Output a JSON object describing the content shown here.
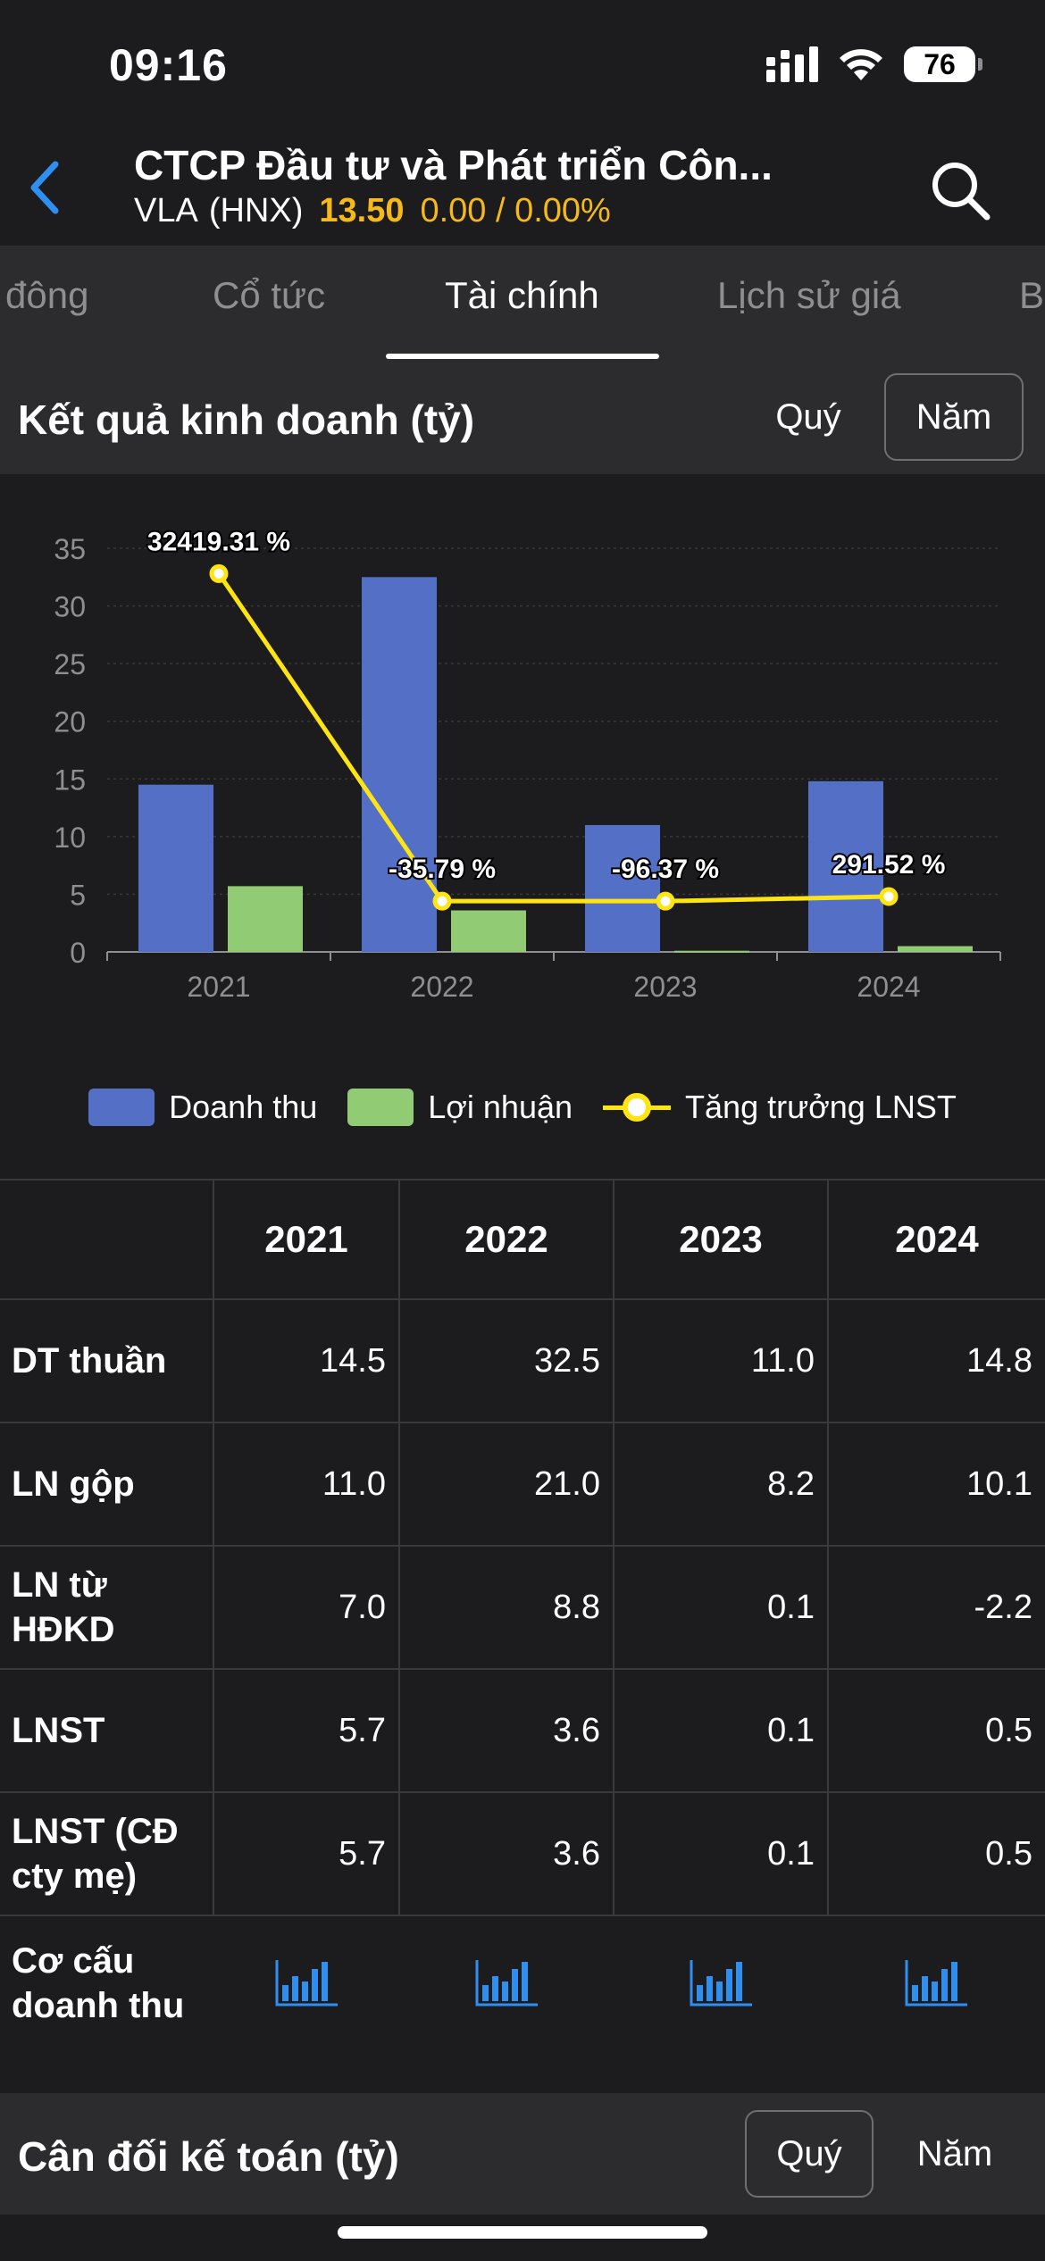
{
  "status": {
    "time": "09:16",
    "battery": "76"
  },
  "header": {
    "title": "CTCP Đầu tư và Phát triển Côn...",
    "symbol": "VLA",
    "exchange": "(HNX)",
    "price": "13.50",
    "change": "0.00 / 0.00%"
  },
  "tabs": [
    "đông",
    "Cổ tức",
    "Tài chính",
    "Lịch sử giá",
    "B"
  ],
  "active_tab": "Tài chính",
  "income_section": {
    "title": "Kết quả kinh doanh (tỷ)",
    "quarter": "Quý",
    "year": "Năm",
    "selected": "Năm"
  },
  "chart_data": {
    "type": "bar",
    "categories": [
      "2021",
      "2022",
      "2023",
      "2024"
    ],
    "series": [
      {
        "name": "Doanh thu",
        "kind": "bar",
        "values": [
          14.5,
          32.5,
          11.0,
          14.8
        ],
        "color": "#5470c6"
      },
      {
        "name": "Lợi nhuận",
        "kind": "bar",
        "values": [
          5.7,
          3.6,
          0.1,
          0.5
        ],
        "color": "#91cc75"
      },
      {
        "name": "Tăng trưởng LNST",
        "kind": "line",
        "values": [
          32.8,
          4.4,
          4.4,
          4.8
        ],
        "labels": [
          "32419.31 %",
          "-35.79 %",
          "-96.37 %",
          "291.52 %"
        ],
        "color": "#ffe413"
      }
    ],
    "yticks": [
      0,
      5,
      10,
      15,
      20,
      25,
      30,
      35
    ],
    "ylim": [
      0,
      35
    ],
    "grid": true,
    "legend_position": "bottom"
  },
  "table": {
    "years": [
      "2021",
      "2022",
      "2023",
      "2024"
    ],
    "rows": [
      {
        "label": "DT thuần",
        "values": [
          "14.5",
          "32.5",
          "11.0",
          "14.8"
        ]
      },
      {
        "label": "LN gộp",
        "values": [
          "11.0",
          "21.0",
          "8.2",
          "10.1"
        ]
      },
      {
        "label": "LN từ HĐKD",
        "values": [
          "7.0",
          "8.8",
          "0.1",
          "-2.2"
        ]
      },
      {
        "label": "LNST",
        "values": [
          "5.7",
          "3.6",
          "0.1",
          "0.5"
        ]
      },
      {
        "label": "LNST (CĐ cty mẹ)",
        "values": [
          "5.7",
          "3.6",
          "0.1",
          "0.5"
        ]
      }
    ],
    "structure_label": "Cơ cấu doanh thu"
  },
  "balance_section": {
    "title": "Cân đối kế toán (tỷ)",
    "quarter": "Quý",
    "year": "Năm",
    "selected": "Quý"
  },
  "colors": {
    "accent": "#f5b919",
    "blue": "#2f8ff0"
  }
}
